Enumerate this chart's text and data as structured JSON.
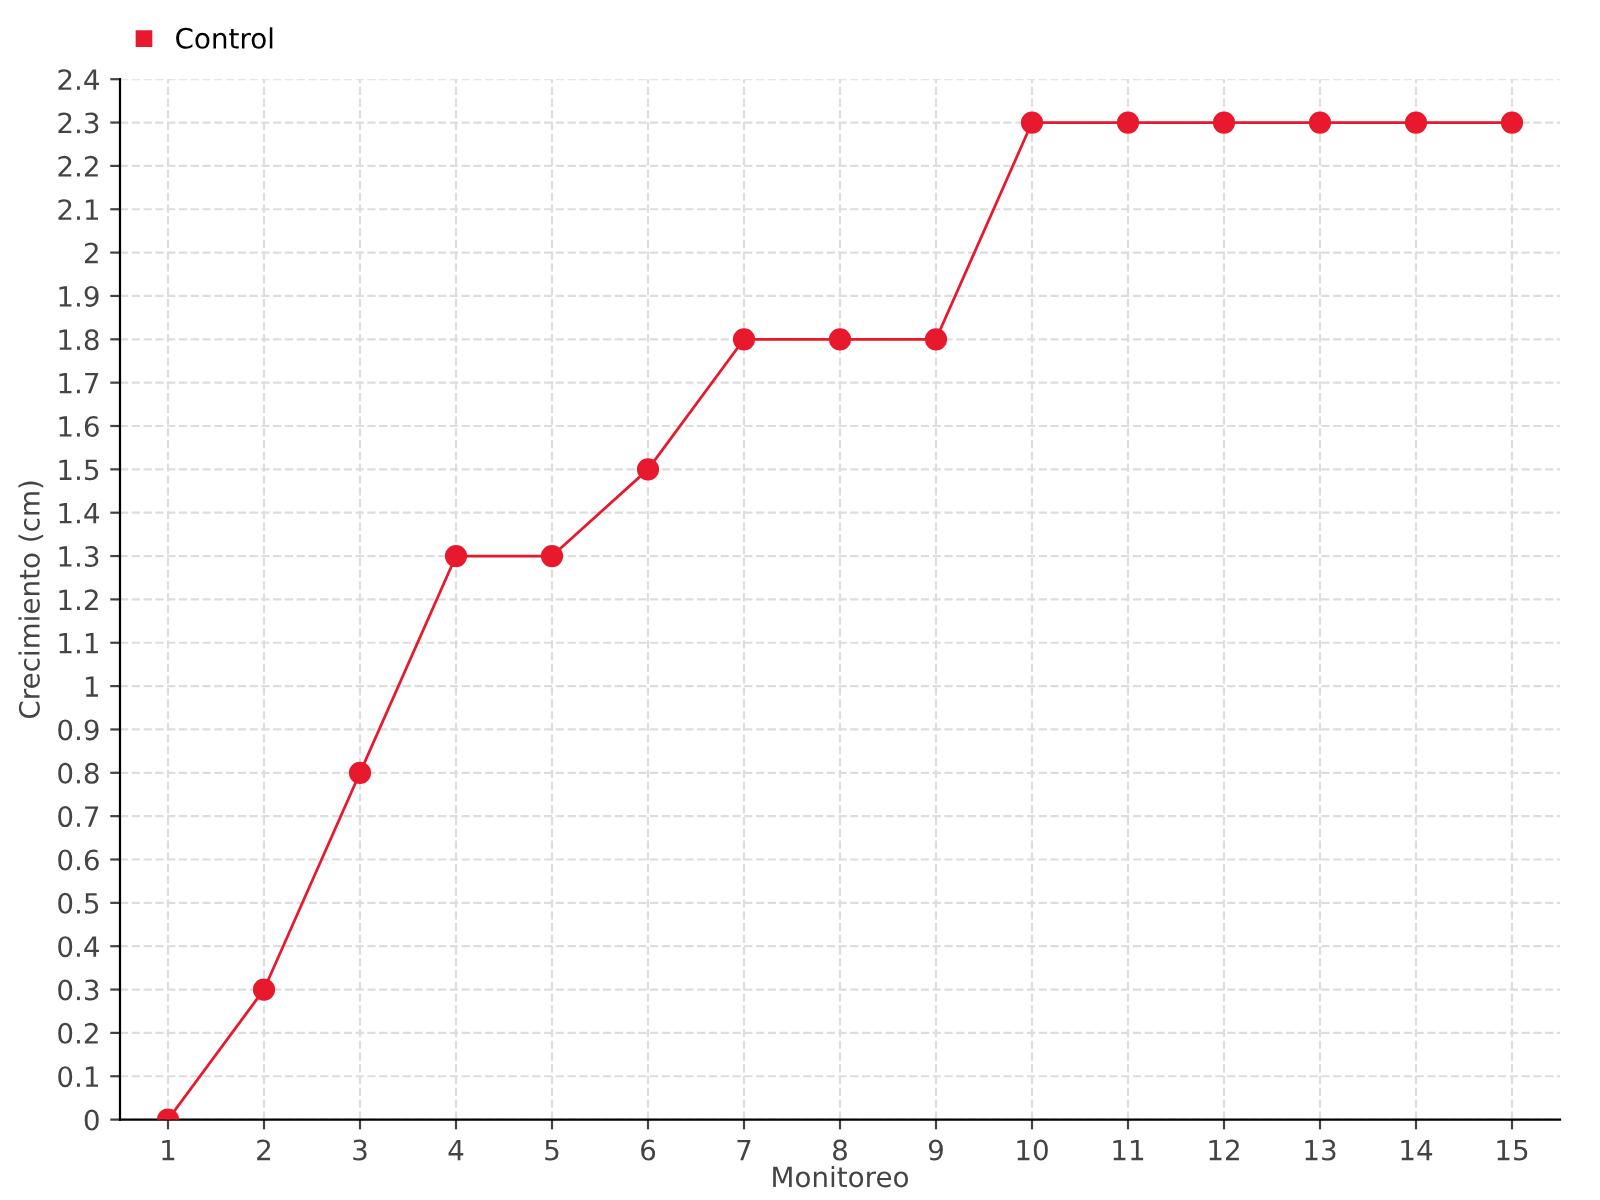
{
  "chart_data": {
    "type": "line",
    "xlabel": "Monitoreo",
    "ylabel": "Crecimiento (cm)",
    "categories": [
      "1",
      "2",
      "3",
      "4",
      "5",
      "6",
      "7",
      "8",
      "9",
      "10",
      "11",
      "12",
      "13",
      "14",
      "15"
    ],
    "series": [
      {
        "name": "Control",
        "color": "#e8192c",
        "values": [
          0,
          0.3,
          0.8,
          1.3,
          1.3,
          1.5,
          1.8,
          1.8,
          1.8,
          2.3,
          2.3,
          2.3,
          2.3,
          2.3,
          2.3
        ]
      }
    ],
    "ylim": [
      0,
      2.4
    ],
    "yticks": [
      0,
      0.1,
      0.2,
      0.3,
      0.4,
      0.5,
      0.6,
      0.7,
      0.8,
      0.9,
      1,
      1.1,
      1.2,
      1.3,
      1.4,
      1.5,
      1.6,
      1.7,
      1.8,
      1.9,
      2,
      2.1,
      2.2,
      2.3,
      2.4
    ],
    "grid": true,
    "legend": "top left",
    "marker": "circle",
    "line_style": "solid"
  }
}
